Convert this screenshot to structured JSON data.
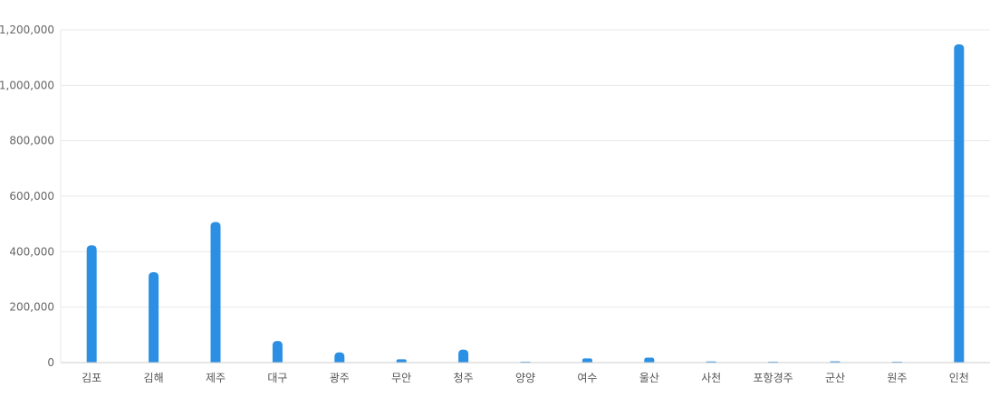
{
  "chart_data": {
    "type": "bar",
    "categories": [
      "김포",
      "김해",
      "제주",
      "대구",
      "광주",
      "무안",
      "청주",
      "양양",
      "여수",
      "울산",
      "사천",
      "포항경주",
      "군산",
      "원주",
      "인천"
    ],
    "values": [
      423000,
      326000,
      507000,
      78000,
      37000,
      12000,
      47000,
      500,
      15000,
      18000,
      4000,
      2000,
      4500,
      1000,
      1148000
    ],
    "ylim": [
      0,
      1200000
    ],
    "yticks": [
      0,
      200000,
      400000,
      600000,
      800000,
      1000000,
      1200000
    ],
    "ytick_labels": [
      "0",
      "200,000",
      "400,000",
      "600,000",
      "800,000",
      "1,000,000",
      "1,200,000"
    ],
    "grid": true,
    "bar_color": "#2b8fe3",
    "grid_color": "#e8e8e8",
    "axis_color": "#cccccc"
  }
}
